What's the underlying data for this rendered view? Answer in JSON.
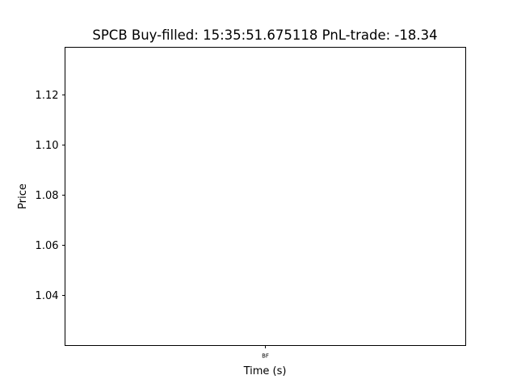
{
  "chart_data": {
    "type": "line",
    "title": "SPCB  Buy-filled:  15:35:51.675118  PnL-trade:  -18.34",
    "xlabel": "Time (s)",
    "ylabel": "Price",
    "x_ticks": [
      {
        "value": 0,
        "label": "BF"
      }
    ],
    "xlim": [
      -0.055,
      0.055
    ],
    "y_ticks": [
      {
        "value": 1.04,
        "label": "1.04"
      },
      {
        "value": 1.06,
        "label": "1.06"
      },
      {
        "value": 1.08,
        "label": "1.08"
      },
      {
        "value": 1.1,
        "label": "1.10"
      },
      {
        "value": 1.12,
        "label": "1.12"
      }
    ],
    "ylim": [
      1.02,
      1.139
    ],
    "grid": false,
    "series": []
  }
}
